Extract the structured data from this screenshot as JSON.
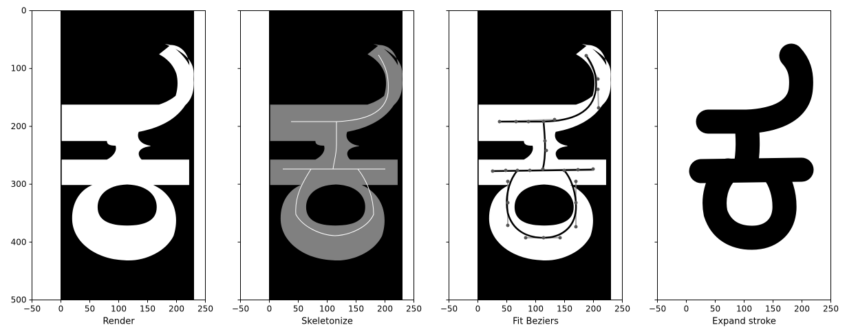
{
  "figure": {
    "colors": {
      "background": "#ffffff",
      "glyph_render": "#ffffff",
      "glyph_skeleton_fill": "#808080",
      "skeleton_line": "#ffffff",
      "bezier_curve": "#000000",
      "control_points": "#555555",
      "stroke": "#000000"
    }
  },
  "chart_data": [
    {
      "type": "image",
      "panel": "render",
      "xlabel": "Render",
      "xlim": [
        -50,
        250
      ],
      "ylim": [
        500,
        0
      ],
      "xticks": [
        "−50",
        "0",
        "50",
        "100",
        "150",
        "200",
        "250"
      ],
      "yticks": [
        "0",
        "100",
        "200",
        "300",
        "400",
        "500"
      ],
      "show_yticklabels": true,
      "image_extent": {
        "x": [
          0,
          230
        ],
        "y": [
          0,
          500
        ]
      }
    },
    {
      "type": "image",
      "panel": "skeletonize",
      "xlabel": "Skeletonize",
      "xlim": [
        -50,
        250
      ],
      "ylim": [
        500,
        0
      ],
      "xticks": [
        "−50",
        "0",
        "50",
        "100",
        "150",
        "200",
        "250"
      ],
      "show_yticklabels": false,
      "image_extent": {
        "x": [
          0,
          230
        ],
        "y": [
          0,
          500
        ]
      }
    },
    {
      "type": "image",
      "panel": "fit-beziers",
      "xlabel": "Fit Beziers",
      "xlim": [
        -50,
        250
      ],
      "ylim": [
        500,
        0
      ],
      "xticks": [
        "−50",
        "0",
        "50",
        "100",
        "150",
        "200",
        "250"
      ],
      "show_yticklabels": false,
      "image_extent": {
        "x": [
          0,
          230
        ],
        "y": [
          0,
          500
        ]
      }
    },
    {
      "type": "image",
      "panel": "expand-stroke",
      "xlabel": "Expand stroke",
      "xlim": [
        -50,
        250
      ],
      "ylim": [
        500,
        0
      ],
      "xticks": [
        "−50",
        "0",
        "50",
        "100",
        "150",
        "200",
        "250"
      ],
      "show_yticklabels": false,
      "image_extent": null
    }
  ]
}
